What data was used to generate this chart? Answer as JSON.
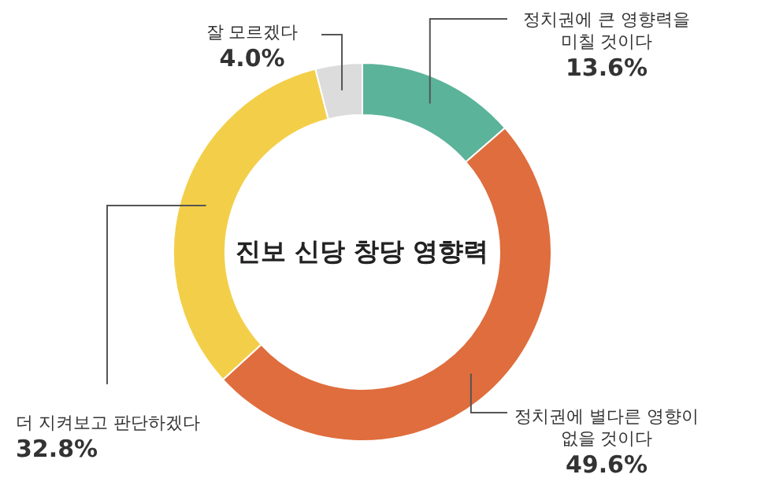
{
  "chart_data": {
    "type": "donut",
    "title": "진보 신당 창당 영향력",
    "categories": [
      "정치권에 큰 영향력을 미칠 것이다",
      "정치권에 별다른 영향이 없을 것이다",
      "더 지켜보고 판단하겠다",
      "잘 모르겠다"
    ],
    "values": [
      13.6,
      49.6,
      32.8,
      4.0
    ],
    "value_labels": [
      "13.6%",
      "49.6%",
      "32.8%",
      "4.0%"
    ],
    "colors": [
      "#5bb39a",
      "#df6d3d",
      "#f3cf49",
      "#dcdcdc"
    ]
  }
}
